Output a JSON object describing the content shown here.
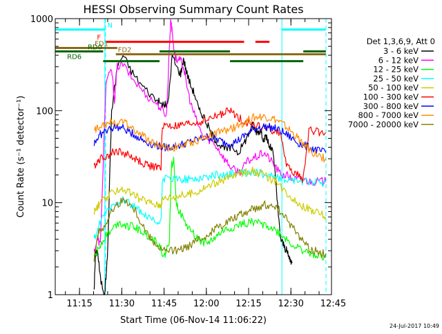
{
  "chart_data": {
    "type": "line",
    "title": "HESSI Observing Summary Count Rates",
    "xlabel": "Start Time (06-Nov-14 11:06:22)",
    "ylabel": "Count Rate (s⁻¹ detector⁻¹)",
    "yscale": "log",
    "ylim": [
      1,
      1000
    ],
    "xlim_minutes": [
      0,
      98
    ],
    "x_ticks": [
      {
        "label": "11:15",
        "minutes": 8.6
      },
      {
        "label": "11:30",
        "minutes": 23.6
      },
      {
        "label": "11:45",
        "minutes": 38.6
      },
      {
        "label": "12:00",
        "minutes": 53.6
      },
      {
        "label": "12:15",
        "minutes": 68.6
      },
      {
        "label": "12:30",
        "minutes": 83.6
      },
      {
        "label": "12:45",
        "minutes": 98.6
      }
    ],
    "y_ticks": [
      {
        "label": "1000",
        "value": 1000
      },
      {
        "label": "100",
        "value": 100
      },
      {
        "label": "10",
        "value": 10
      },
      {
        "label": "1",
        "value": 1
      }
    ],
    "grid": false,
    "legend_placement": "right",
    "legend_header": "Det 1,3,6,9, Att 0",
    "footer_date": "24-Jul-2017 10:49",
    "background_color": "#ffffff",
    "axis_color": "#000000",
    "eclipse_lines": {
      "color": "#00ffff",
      "solid_minutes": [
        17.6,
        80.4
      ],
      "dashed_minutes": [
        17.6,
        95.8
      ]
    },
    "flag_bars": [
      {
        "label": "N",
        "color": "#00ffff",
        "y": 760,
        "segments": [
          [
            0,
            17.6
          ],
          [
            80.4,
            96
          ]
        ],
        "label_minutes": 18.5
      },
      {
        "label": "F",
        "color": "#ff0000",
        "y": 560,
        "segments": [
          [
            18,
            67
          ],
          [
            71,
            76
          ]
        ],
        "label_minutes": 14.8
      },
      {
        "label": "FD1",
        "color": "#8b6914",
        "y": 480,
        "segments": [
          [
            0,
            22
          ]
        ],
        "label_minutes": 14
      },
      {
        "label": "FD2",
        "color": "#8b6914",
        "y": 410,
        "segments": [
          [
            21.5,
            96
          ]
        ],
        "label_minutes": 22.2
      },
      {
        "label": "RD0",
        "color": "#006400",
        "y": 440,
        "segments": [
          [
            0,
            17
          ],
          [
            37,
            62
          ],
          [
            88,
            96
          ]
        ],
        "label_minutes": 11.5
      },
      {
        "label": "RD6",
        "color": "#006400",
        "y": 345,
        "segments": [
          [
            17,
            37
          ],
          [
            62,
            88
          ]
        ],
        "label_minutes": 4.2
      }
    ],
    "series": [
      {
        "name": "3 - 6 keV",
        "color": "#000000",
        "x": [
          13.8,
          14.3,
          15,
          16,
          17.5,
          18.5,
          20,
          22,
          24,
          27,
          30,
          33,
          36,
          37.5,
          39,
          40,
          41.5,
          43,
          44.5,
          45.5,
          46.5,
          48,
          49.5,
          51,
          52.5,
          54,
          55.5,
          57,
          59,
          61,
          63,
          65,
          67,
          68.5,
          70,
          71,
          72,
          73,
          74,
          75,
          76,
          77,
          78,
          79,
          80,
          81,
          82,
          83,
          84
        ],
        "values": [
          1.2,
          2.8,
          3.0,
          1.5,
          1.0,
          2.5,
          100,
          300,
          400,
          270,
          200,
          160,
          130,
          118,
          115,
          120,
          400,
          300,
          250,
          370,
          270,
          190,
          150,
          100,
          90,
          70,
          55,
          48,
          40,
          38,
          40,
          35,
          45,
          55,
          70,
          60,
          60,
          60,
          48,
          52,
          40,
          38,
          22,
          8,
          4,
          3.5,
          3,
          2.5,
          2.2
        ]
      },
      {
        "name": "6 - 12 keV",
        "color": "#ff00ff",
        "x": [
          13.8,
          15,
          16,
          18,
          20,
          21,
          22,
          24,
          27,
          30,
          33,
          36,
          38,
          39.5,
          40.5,
          41,
          41.5,
          42.2,
          43,
          44.5,
          45.5,
          46.5,
          48,
          50,
          52,
          54,
          56,
          58,
          60,
          62,
          64,
          66,
          68,
          70,
          72,
          74,
          76,
          78,
          80,
          82,
          84,
          86,
          88,
          90,
          92,
          94,
          96
        ],
        "values": [
          3.0,
          4.0,
          3.5,
          200,
          280,
          130,
          300,
          320,
          230,
          180,
          140,
          120,
          100,
          90,
          500,
          1000,
          700,
          450,
          350,
          350,
          300,
          200,
          120,
          80,
          55,
          50,
          45,
          38,
          30,
          25,
          22,
          22,
          28,
          30,
          32,
          35,
          30,
          25,
          20,
          20,
          18,
          18,
          18,
          17,
          17,
          17,
          17
        ]
      },
      {
        "name": "12 - 25 keV",
        "color": "#00ff00",
        "x": [
          13.8,
          15,
          16,
          18,
          20,
          22,
          24,
          26,
          28,
          30,
          32,
          34,
          36,
          37.5,
          38.5,
          39.5,
          40.5,
          41.2,
          42,
          43,
          44,
          46,
          48,
          50,
          52,
          54,
          56,
          58,
          60,
          62,
          64,
          66,
          68,
          70,
          72,
          74,
          76,
          78,
          80,
          82,
          84,
          86,
          88,
          90,
          92,
          94,
          96
        ],
        "values": [
          2.5,
          3.0,
          3.5,
          4.5,
          5.0,
          6.0,
          6.0,
          5.5,
          5.5,
          5.0,
          4.5,
          4.2,
          3.8,
          3.2,
          2.5,
          3.0,
          4.0,
          25,
          30,
          10,
          8,
          6,
          5,
          4.2,
          3.8,
          3.6,
          4.0,
          4.5,
          5.0,
          5.2,
          5.5,
          5.8,
          6.0,
          6.2,
          6.0,
          5.8,
          5.5,
          5.0,
          4.5,
          4.0,
          3.5,
          3.2,
          3.0,
          2.8,
          2.8,
          2.6,
          2.6
        ]
      },
      {
        "name": "25 - 50 keV",
        "color": "#00ffff",
        "x": [
          13.8,
          15,
          16,
          18,
          20,
          22,
          24,
          26,
          28,
          30,
          32,
          34,
          36,
          37.5,
          38,
          40,
          42,
          44,
          46,
          48,
          50,
          52,
          54,
          56,
          58,
          60,
          62,
          64,
          66,
          68,
          70,
          72,
          74,
          76,
          78,
          80,
          82,
          84,
          86,
          88,
          90,
          92,
          94,
          96
        ],
        "values": [
          4,
          5,
          6,
          8,
          9,
          10,
          11,
          10,
          9,
          8,
          7,
          6.5,
          6,
          6,
          18,
          18,
          18,
          18,
          18,
          18,
          18,
          19,
          19,
          19.5,
          20,
          20,
          20.5,
          21,
          21,
          21,
          21,
          21,
          20.5,
          20,
          19,
          18,
          18,
          17.5,
          17.5,
          17,
          17,
          17,
          16.5,
          16.5
        ]
      },
      {
        "name": "50 - 100 keV",
        "color": "#cccc00",
        "x": [
          13.8,
          15,
          16,
          18,
          20,
          22,
          24,
          26,
          28,
          30,
          32,
          34,
          36,
          37.5,
          38,
          40,
          42,
          44,
          46,
          48,
          50,
          52,
          54,
          56,
          58,
          60,
          62,
          64,
          66,
          68,
          70,
          72,
          74,
          76,
          78,
          80,
          82,
          84,
          86,
          88,
          90,
          92,
          94,
          96
        ],
        "values": [
          8,
          9,
          10,
          11,
          12.5,
          14,
          14,
          13,
          12,
          11,
          10.5,
          10,
          9.5,
          9.5,
          11,
          11.5,
          11.5,
          12,
          12,
          12.5,
          13,
          14,
          15,
          16,
          17,
          18,
          19,
          20,
          21,
          22,
          22,
          21,
          20,
          18.5,
          17,
          15,
          13,
          11.5,
          10,
          9,
          8.5,
          8,
          7.5,
          7
        ]
      },
      {
        "name": "100 - 300 keV",
        "color": "#ff0000",
        "x": [
          13.8,
          15,
          16,
          18,
          20,
          22,
          24,
          26,
          28,
          30,
          32,
          34,
          36,
          37.5,
          38,
          40,
          42,
          44,
          46,
          48,
          50,
          52,
          54,
          56,
          58,
          60,
          62,
          64,
          66,
          68,
          70,
          72,
          74,
          76,
          78,
          80,
          82,
          84,
          86,
          88,
          90,
          92,
          94,
          96
        ],
        "values": [
          25,
          28,
          30,
          32,
          35,
          36,
          35,
          33,
          30,
          28,
          26,
          25,
          24,
          24,
          70,
          68,
          67,
          68,
          70,
          72,
          74,
          76,
          80,
          85,
          90,
          95,
          100,
          90,
          80,
          75,
          70,
          68,
          65,
          62,
          60,
          58,
          25,
          22,
          20,
          18,
          62,
          60,
          58,
          57
        ]
      },
      {
        "name": "300 - 800 keV",
        "color": "#0000ff",
        "x": [
          13.8,
          15,
          16,
          18,
          20,
          22,
          24,
          26,
          28,
          30,
          32,
          34,
          36,
          38,
          40,
          42,
          44,
          46,
          48,
          50,
          52,
          54,
          56,
          58,
          60,
          62,
          64,
          66,
          68,
          70,
          72,
          74,
          76,
          78,
          80,
          82,
          84,
          86,
          88,
          90,
          92,
          94,
          96
        ],
        "values": [
          45,
          50,
          55,
          60,
          65,
          66,
          64,
          60,
          55,
          50,
          46,
          44,
          42,
          40,
          40,
          41,
          42,
          44,
          46,
          48,
          50,
          52,
          50,
          48,
          45,
          44,
          46,
          50,
          56,
          62,
          66,
          67,
          66,
          64,
          60,
          55,
          50,
          45,
          42,
          40,
          38,
          36,
          35
        ]
      },
      {
        "name": "800 - 7000 keV",
        "color": "#ff8c00",
        "x": [
          13.8,
          15,
          16,
          18,
          20,
          22,
          24,
          26,
          28,
          30,
          32,
          34,
          36,
          38,
          40,
          42,
          44,
          46,
          48,
          50,
          52,
          54,
          56,
          58,
          60,
          62,
          64,
          66,
          68,
          70,
          72,
          74,
          76,
          78,
          80,
          82,
          84,
          86,
          88,
          90,
          92,
          94,
          96
        ],
        "values": [
          60,
          65,
          70,
          72,
          75,
          76,
          74,
          70,
          63,
          56,
          50,
          46,
          43,
          41,
          40,
          40,
          41,
          43,
          45,
          47,
          50,
          53,
          56,
          58,
          60,
          62,
          66,
          72,
          78,
          83,
          86,
          86,
          84,
          80,
          74,
          66,
          58,
          50,
          44,
          38,
          34,
          32,
          30
        ]
      },
      {
        "name": "7000 - 20000 keV",
        "color": "#808000",
        "x": [
          13.8,
          15,
          16,
          18,
          20,
          22,
          24,
          26,
          28,
          30,
          32,
          34,
          36,
          38,
          40,
          42,
          44,
          46,
          48,
          50,
          52,
          54,
          56,
          58,
          60,
          62,
          64,
          66,
          68,
          70,
          72,
          74,
          76,
          78,
          80,
          82,
          84,
          86,
          88,
          90,
          92,
          94,
          96
        ],
        "values": [
          2.5,
          4.5,
          5,
          6,
          8,
          9.5,
          10.5,
          10,
          8.5,
          6.5,
          5,
          4,
          3.5,
          3,
          3,
          3,
          3,
          3.2,
          3.5,
          3.8,
          4,
          4.5,
          5,
          5.5,
          6,
          6.5,
          7,
          7.5,
          8,
          8.5,
          9,
          9.5,
          9.5,
          9,
          8,
          6.5,
          5.5,
          4.5,
          3.8,
          3.2,
          3,
          2.8,
          2.8
        ]
      }
    ]
  }
}
